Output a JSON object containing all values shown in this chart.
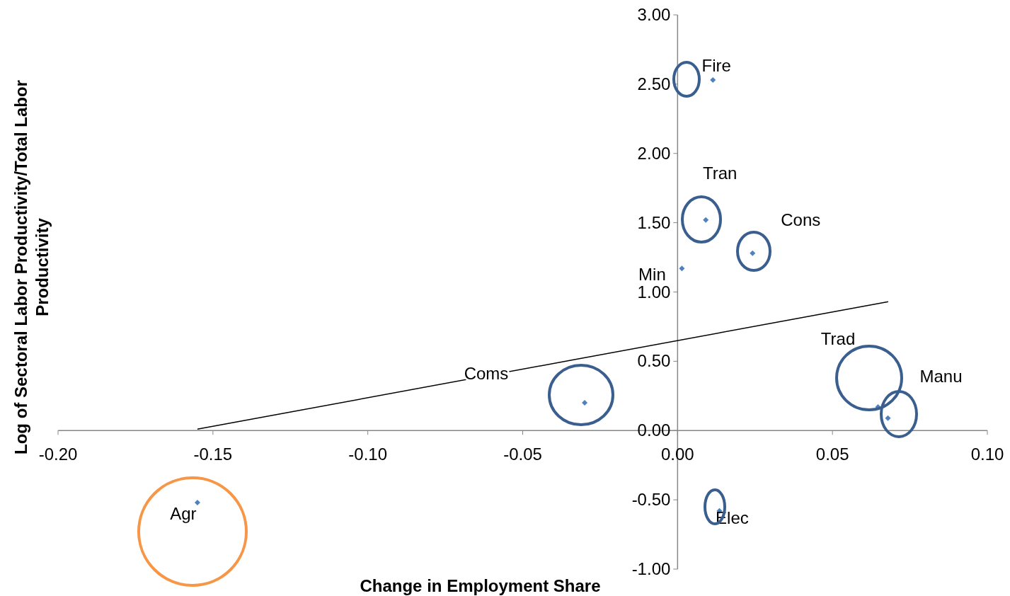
{
  "chart_data": {
    "type": "scatter",
    "xlabel": "Change in Employment Share",
    "ylabel": "Log of Sectoral Labor Productivity/Total Labor Productivity",
    "xlim": [
      -0.2,
      0.1
    ],
    "xticks": [
      {
        "value": -0.2,
        "label": "-0.20"
      },
      {
        "value": -0.15,
        "label": "-0.15"
      },
      {
        "value": -0.1,
        "label": "-0.10"
      },
      {
        "value": -0.05,
        "label": "-0.05"
      },
      {
        "value": 0,
        "label": "0.00"
      },
      {
        "value": 0.05,
        "label": "0.05"
      },
      {
        "value": 0.1,
        "label": "0.10"
      }
    ],
    "ylim": [
      -1,
      3
    ],
    "yticks": [
      {
        "value": -1,
        "label": "-1.00"
      },
      {
        "value": -0.5,
        "label": "-0.50"
      },
      {
        "value": 0,
        "label": "0.00"
      },
      {
        "value": 0.5,
        "label": "0.50"
      },
      {
        "value": 1,
        "label": "1.00"
      },
      {
        "value": 1.5,
        "label": "1.50"
      },
      {
        "value": 2,
        "label": "2.00"
      },
      {
        "value": 2.5,
        "label": "2.50"
      },
      {
        "value": 3,
        "label": "3.00"
      }
    ],
    "grid": false,
    "legend": false,
    "series": [
      {
        "marker": "diamond",
        "color": "#4f81bd",
        "x": [
          0.0114,
          0.0091,
          0.0242,
          0.0014,
          0.0647,
          0.0679,
          -0.03,
          -0.155,
          0.0135
        ],
        "values": [
          2.53,
          1.52,
          1.28,
          1.17,
          0.17,
          0.09,
          0.2,
          -0.52,
          -0.58
        ]
      },
      {
        "type": "line",
        "marker": "none",
        "color": "#000000",
        "x": [
          -0.155,
          0.068
        ],
        "values": [
          0.01,
          0.93
        ]
      }
    ],
    "annotations": [
      {
        "text": "Fire",
        "x": 0.0114,
        "y": 2.53
      },
      {
        "text": "Tran",
        "x": 0.0091,
        "y": 1.52
      },
      {
        "text": "Cons",
        "x": 0.0242,
        "y": 1.28
      },
      {
        "text": "Min",
        "x": 0.0014,
        "y": 1.17
      },
      "Trad",
      {
        "text": "Manu",
        "x": 0.0679,
        "y": 0.09
      },
      "Coms",
      {
        "text": "Agr",
        "x": -0.155,
        "y": -0.52
      },
      {
        "text": "Elec",
        "x": 0.0135,
        "y": -0.58
      }
    ]
  }
}
